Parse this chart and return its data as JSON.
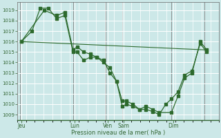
{
  "xlabel": "Pression niveau de la mer( hPa )",
  "background_color": "#cce8e8",
  "grid_color": "#ffffff",
  "line_color": "#2d6a2d",
  "ylim": [
    1008.5,
    1019.8
  ],
  "yticks": [
    1009,
    1010,
    1011,
    1012,
    1013,
    1014,
    1015,
    1016,
    1017,
    1018,
    1019
  ],
  "xlim": [
    -0.3,
    24.3
  ],
  "xtick_positions": [
    0.2,
    6.7,
    10.7,
    12.7,
    18.7,
    22.7
  ],
  "xtick_labels": [
    "Jeu",
    "Lun",
    "Ven",
    "Sam",
    "Dim",
    ""
  ],
  "day_vlines": [
    0,
    6.5,
    10.5,
    12.5,
    18.5,
    22.5
  ],
  "line1_x": [
    0.2,
    1.5,
    2.5,
    3.5,
    4.5,
    5.5,
    6.5,
    7.0,
    7.8,
    8.6,
    9.4,
    10.2,
    11.0,
    11.8,
    12.5,
    13.0,
    13.8,
    14.6,
    15.4,
    16.2,
    17.0,
    18.5,
    19.3,
    20.1,
    21.0,
    22.0,
    22.8
  ],
  "line1_y": [
    1016.0,
    1017.0,
    1019.2,
    1019.2,
    1018.2,
    1018.5,
    1015.0,
    1015.0,
    1014.2,
    1014.5,
    1014.5,
    1014.0,
    1013.5,
    1012.2,
    1010.3,
    1010.3,
    1010.0,
    1009.5,
    1009.8,
    1009.5,
    1009.2,
    1009.2,
    1010.8,
    1012.5,
    1013.0,
    1016.0,
    1015.2
  ],
  "line2_x": [
    0.2,
    3.0,
    4.5,
    5.5,
    6.5,
    7.0,
    7.8,
    8.6,
    9.4,
    10.2,
    11.0,
    11.8,
    12.5,
    13.0,
    13.8,
    14.6,
    15.4,
    16.2,
    17.0,
    17.8,
    18.5,
    19.3,
    20.1,
    21.0,
    22.0,
    22.8
  ],
  "line2_y": [
    1016.0,
    1019.0,
    1018.5,
    1018.8,
    1015.2,
    1015.5,
    1015.0,
    1014.8,
    1014.5,
    1014.2,
    1013.0,
    1012.2,
    1009.8,
    1010.0,
    1009.8,
    1009.5,
    1009.5,
    1009.3,
    1009.0,
    1010.0,
    1010.5,
    1011.2,
    1012.8,
    1013.2,
    1015.8,
    1015.0
  ],
  "line3_x": [
    0.2,
    22.8
  ],
  "line3_y": [
    1016.0,
    1015.2
  ]
}
